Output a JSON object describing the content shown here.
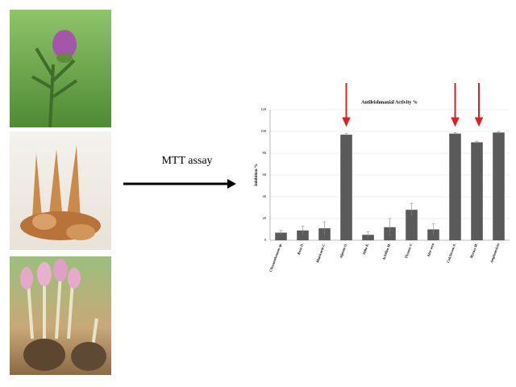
{
  "chart_data": {
    "type": "bar",
    "title": "Antileishmanial Activity %",
    "y_label": "Inhibition %",
    "process_label": "MTT assay",
    "categories": [
      "Chrysanthemum sp.",
      "Rosa D.",
      "Matricaria C.",
      "Alpinia O.",
      "Hiba K.",
      "Achillea M.",
      "Thymus V.",
      "Aloe vera",
      "Colchicum A.",
      "Myrtus M.",
      "Amphotericin"
    ],
    "values": [
      7,
      9,
      11,
      97,
      5,
      12,
      28,
      10,
      98,
      90,
      99
    ],
    "errors": [
      2,
      4,
      6,
      1,
      3,
      8,
      6,
      5,
      1,
      1,
      1
    ],
    "color": "#5a5a5a",
    "ylim": [
      0,
      120
    ],
    "yticks": [
      0,
      20,
      40,
      60,
      80,
      100,
      120
    ],
    "grid": true
  }
}
